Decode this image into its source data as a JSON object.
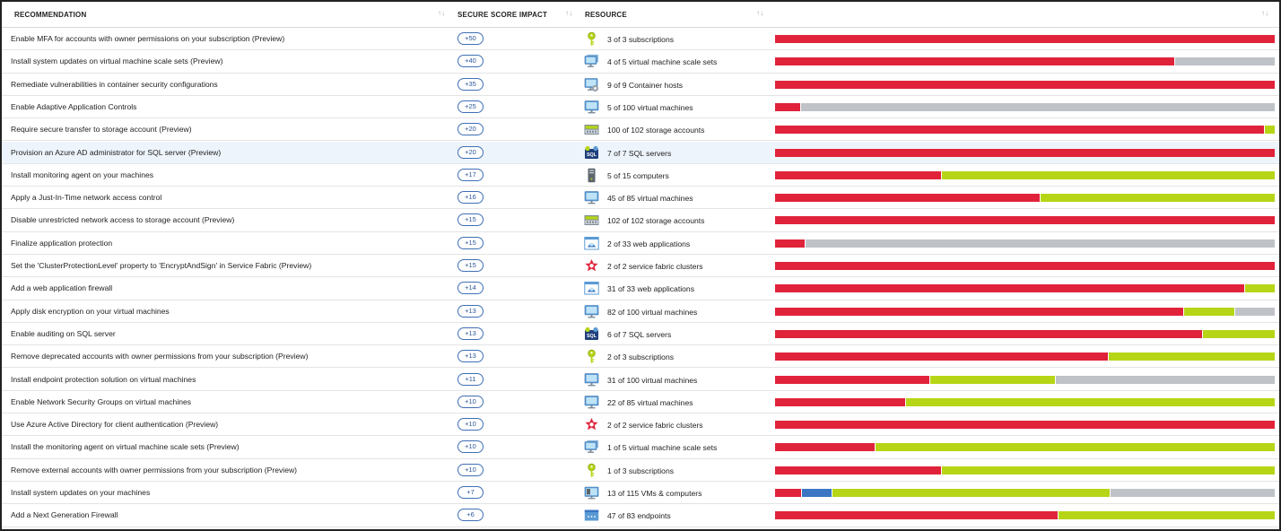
{
  "header": {
    "recommendation": "RECOMMENDATION",
    "secure_score_impact": "SECURE SCORE IMPACT",
    "resource": "RESOURCE",
    "sort_glyph": "↑↓"
  },
  "colors": {
    "unhealthy": "#e0233a",
    "healthy": "#b7d517",
    "not_applicable": "#bfc3c8",
    "other": "#3a76c3",
    "pill_border": "#3f6fb5"
  },
  "rows": [
    {
      "recommendation": "Enable MFA for accounts with owner permissions on your subscription (Preview)",
      "impact": "+50",
      "icon": "key-icon",
      "resource": "3 of 3 subscriptions",
      "bar": [
        [
          "unhealthy",
          1.0
        ]
      ]
    },
    {
      "recommendation": "Install system updates on virtual machine scale sets (Preview)",
      "impact": "+40",
      "icon": "vm-scale-set-icon",
      "resource": "4 of 5 virtual machine scale sets",
      "bar": [
        [
          "unhealthy",
          0.8
        ],
        [
          "not_applicable",
          0.2
        ]
      ]
    },
    {
      "recommendation": "Remediate vulnerabilities in container security configurations",
      "impact": "+35",
      "icon": "container-host-icon",
      "resource": "9 of 9 Container hosts",
      "bar": [
        [
          "unhealthy",
          1.0
        ]
      ]
    },
    {
      "recommendation": "Enable Adaptive Application Controls",
      "impact": "+25",
      "icon": "virtual-machine-icon",
      "resource": "5 of 100 virtual machines",
      "bar": [
        [
          "unhealthy",
          0.05
        ],
        [
          "not_applicable",
          0.95
        ]
      ]
    },
    {
      "recommendation": "Require secure transfer to storage account (Preview)",
      "impact": "+20",
      "icon": "storage-account-icon",
      "resource": "100 of 102 storage accounts",
      "bar": [
        [
          "unhealthy",
          0.98
        ],
        [
          "healthy",
          0.02
        ]
      ]
    },
    {
      "recommendation": "Provision an Azure AD administrator for SQL server (Preview)",
      "impact": "+20",
      "icon": "sql-server-icon",
      "resource": "7 of 7 SQL servers",
      "bar": [
        [
          "unhealthy",
          1.0
        ]
      ],
      "selected": true
    },
    {
      "recommendation": "Install monitoring agent on your machines",
      "impact": "+17",
      "icon": "computer-icon",
      "resource": "5 of 15 computers",
      "bar": [
        [
          "unhealthy",
          0.333
        ],
        [
          "healthy",
          0.667
        ]
      ]
    },
    {
      "recommendation": "Apply a Just-In-Time network access control",
      "impact": "+16",
      "icon": "virtual-machine-icon",
      "resource": "45 of 85 virtual machines",
      "bar": [
        [
          "unhealthy",
          0.53
        ],
        [
          "healthy",
          0.47
        ]
      ]
    },
    {
      "recommendation": "Disable unrestricted network access to storage account (Preview)",
      "impact": "+15",
      "icon": "storage-account-icon",
      "resource": "102 of 102 storage accounts",
      "bar": [
        [
          "unhealthy",
          1.0
        ]
      ]
    },
    {
      "recommendation": "Finalize application protection",
      "impact": "+15",
      "icon": "web-application-icon",
      "resource": "2 of 33 web applications",
      "bar": [
        [
          "unhealthy",
          0.06
        ],
        [
          "not_applicable",
          0.94
        ]
      ]
    },
    {
      "recommendation": "Set the 'ClusterProtectionLevel' property to 'EncryptAndSign' in Service Fabric (Preview)",
      "impact": "+15",
      "icon": "service-fabric-icon",
      "resource": "2 of 2 service fabric clusters",
      "bar": [
        [
          "unhealthy",
          1.0
        ]
      ]
    },
    {
      "recommendation": "Add a web application firewall",
      "impact": "+14",
      "icon": "web-application-icon",
      "resource": "31 of 33 web applications",
      "bar": [
        [
          "unhealthy",
          0.94
        ],
        [
          "healthy",
          0.06
        ]
      ]
    },
    {
      "recommendation": "Apply disk encryption on your virtual machines",
      "impact": "+13",
      "icon": "virtual-machine-icon",
      "resource": "82 of 100 virtual machines",
      "bar": [
        [
          "unhealthy",
          0.82
        ],
        [
          "healthy",
          0.1
        ],
        [
          "not_applicable",
          0.08
        ]
      ]
    },
    {
      "recommendation": "Enable auditing on SQL server",
      "impact": "+13",
      "icon": "sql-server-icon",
      "resource": "6 of 7 SQL servers",
      "bar": [
        [
          "unhealthy",
          0.857
        ],
        [
          "healthy",
          0.143
        ]
      ]
    },
    {
      "recommendation": "Remove deprecated accounts with owner permissions from your subscription (Preview)",
      "impact": "+13",
      "icon": "key-icon",
      "resource": "2 of 3 subscriptions",
      "bar": [
        [
          "unhealthy",
          0.667
        ],
        [
          "healthy",
          0.333
        ]
      ]
    },
    {
      "recommendation": "Install endpoint protection solution on virtual machines",
      "impact": "+11",
      "icon": "virtual-machine-icon",
      "resource": "31 of 100 virtual machines",
      "bar": [
        [
          "unhealthy",
          0.31
        ],
        [
          "healthy",
          0.25
        ],
        [
          "not_applicable",
          0.44
        ]
      ]
    },
    {
      "recommendation": "Enable Network Security Groups on virtual machines",
      "impact": "+10",
      "icon": "virtual-machine-icon",
      "resource": "22 of 85 virtual machines",
      "bar": [
        [
          "unhealthy",
          0.26
        ],
        [
          "healthy",
          0.74
        ]
      ]
    },
    {
      "recommendation": "Use Azure Active Directory for client authentication (Preview)",
      "impact": "+10",
      "icon": "service-fabric-icon",
      "resource": "2 of 2 service fabric clusters",
      "bar": [
        [
          "unhealthy",
          1.0
        ]
      ]
    },
    {
      "recommendation": "Install the monitoring agent on virtual machine scale sets (Preview)",
      "impact": "+10",
      "icon": "vm-scale-set-icon",
      "resource": "1 of 5 virtual machine scale sets",
      "bar": [
        [
          "unhealthy",
          0.2
        ],
        [
          "healthy",
          0.8
        ]
      ]
    },
    {
      "recommendation": "Remove external accounts with owner permissions from your subscription (Preview)",
      "impact": "+10",
      "icon": "key-icon",
      "resource": "1 of 3 subscriptions",
      "bar": [
        [
          "unhealthy",
          0.333
        ],
        [
          "healthy",
          0.667
        ]
      ]
    },
    {
      "recommendation": "Install system updates on your machines",
      "impact": "+7",
      "icon": "vms-and-computers-icon",
      "resource": "13 of 115 VMs & computers",
      "bar": [
        [
          "unhealthy",
          0.052
        ],
        [
          "other",
          0.06
        ],
        [
          "healthy",
          0.558
        ],
        [
          "not_applicable",
          0.33
        ]
      ]
    },
    {
      "recommendation": "Add a Next Generation Firewall",
      "impact": "+6",
      "icon": "endpoint-icon",
      "resource": "47 of 83 endpoints",
      "bar": [
        [
          "unhealthy",
          0.566
        ],
        [
          "healthy",
          0.434
        ]
      ]
    }
  ]
}
